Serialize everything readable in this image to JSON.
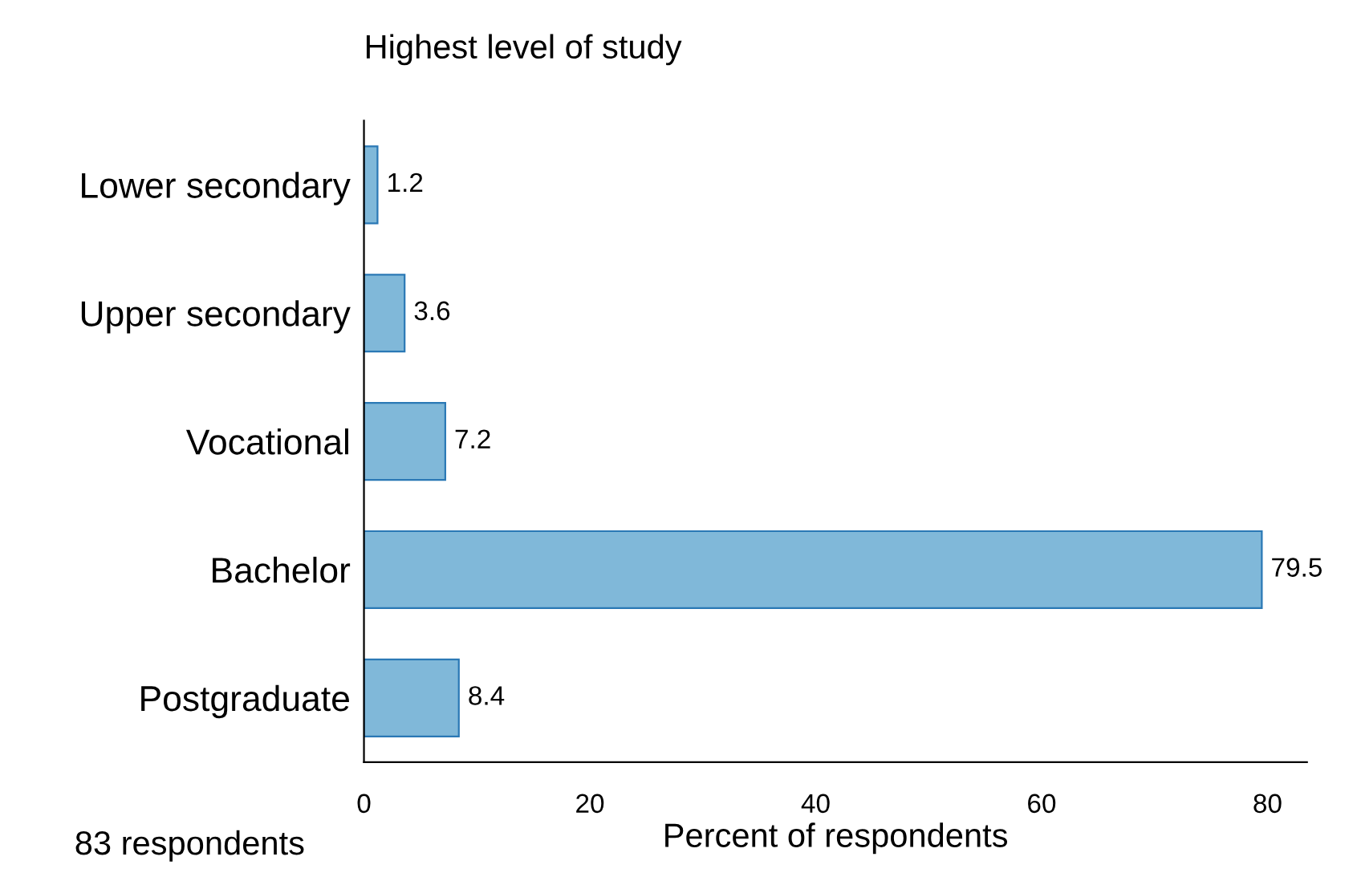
{
  "chart_data": {
    "type": "bar",
    "orientation": "horizontal",
    "title": "Highest level of study",
    "xlabel": "Percent of respondents",
    "categories": [
      "Lower secondary",
      "Upper secondary",
      "Vocational",
      "Bachelor",
      "Postgraduate"
    ],
    "values": [
      1.2,
      3.6,
      7.2,
      79.5,
      8.4
    ],
    "color": "#80b8d9",
    "xlim": [
      0,
      83.5
    ],
    "xticks": [
      0,
      20,
      40,
      60,
      80
    ],
    "data_labels": true,
    "grid": false,
    "legend": false,
    "annotations": [
      "83 respondents"
    ]
  }
}
